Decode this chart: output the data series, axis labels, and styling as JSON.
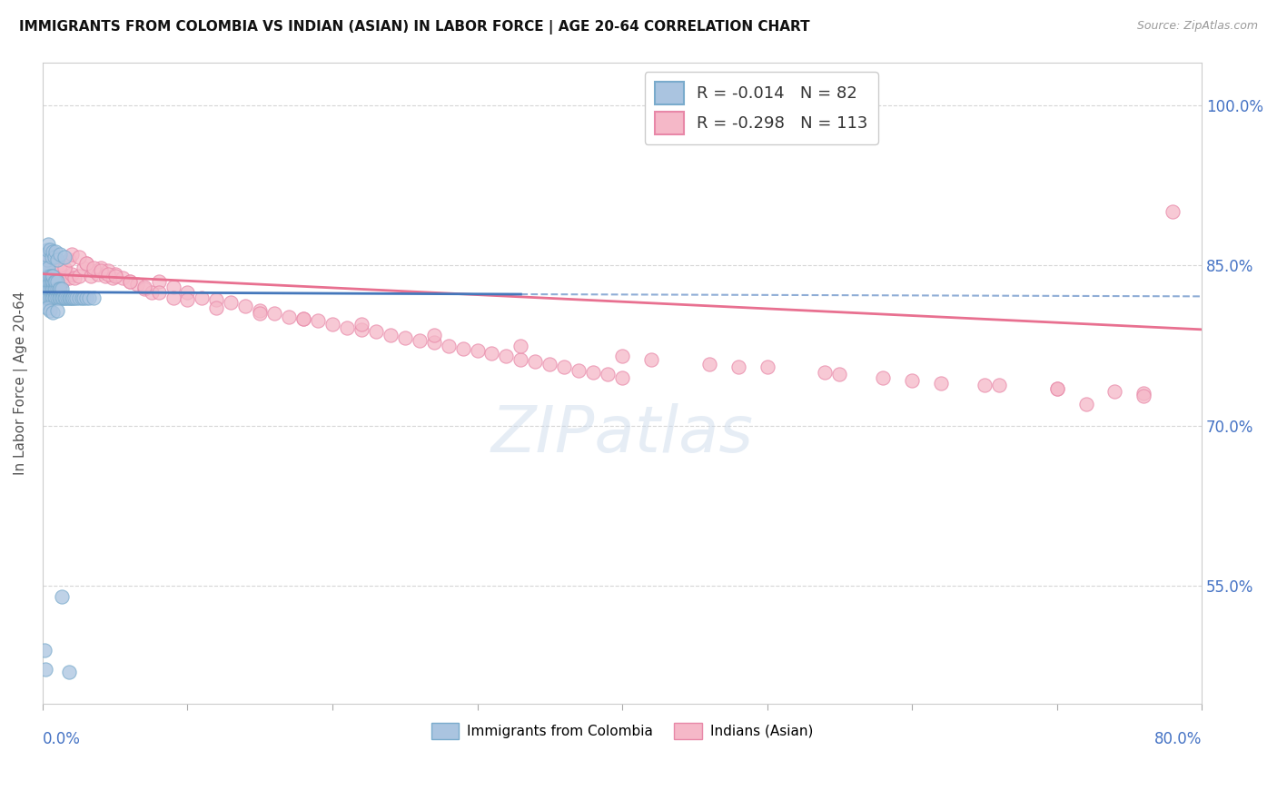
{
  "title": "IMMIGRANTS FROM COLOMBIA VS INDIAN (ASIAN) IN LABOR FORCE | AGE 20-64 CORRELATION CHART",
  "source": "Source: ZipAtlas.com",
  "ylabel": "In Labor Force | Age 20-64",
  "ylabel_ticks": [
    "55.0%",
    "70.0%",
    "85.0%",
    "100.0%"
  ],
  "ylabel_tick_vals": [
    0.55,
    0.7,
    0.85,
    1.0
  ],
  "xlim": [
    0.0,
    0.8
  ],
  "ylim": [
    0.44,
    1.04
  ],
  "colombia_color": "#aac4e0",
  "colombia_edge": "#7aabcc",
  "india_color": "#f5b8c8",
  "india_edge": "#e888a8",
  "colombia_R": -0.014,
  "colombia_N": 82,
  "india_R": -0.298,
  "india_N": 113,
  "watermark_text": "ZIPatlas",
  "legend_label_colombia": "Immigrants from Colombia",
  "legend_label_india": "Indians (Asian)",
  "colombia_trend_color": "#4477bb",
  "india_trend_color": "#e87090",
  "colombia_x": [
    0.001,
    0.001,
    0.001,
    0.002,
    0.002,
    0.002,
    0.002,
    0.002,
    0.002,
    0.003,
    0.003,
    0.003,
    0.003,
    0.003,
    0.003,
    0.004,
    0.004,
    0.004,
    0.004,
    0.004,
    0.005,
    0.005,
    0.005,
    0.005,
    0.006,
    0.006,
    0.006,
    0.006,
    0.007,
    0.007,
    0.007,
    0.007,
    0.008,
    0.008,
    0.008,
    0.009,
    0.009,
    0.009,
    0.01,
    0.01,
    0.01,
    0.011,
    0.011,
    0.012,
    0.012,
    0.013,
    0.013,
    0.014,
    0.015,
    0.016,
    0.017,
    0.018,
    0.019,
    0.02,
    0.021,
    0.022,
    0.023,
    0.025,
    0.027,
    0.028,
    0.03,
    0.032,
    0.035,
    0.002,
    0.003,
    0.004,
    0.005,
    0.006,
    0.007,
    0.008,
    0.009,
    0.01,
    0.012,
    0.015,
    0.003,
    0.005,
    0.007,
    0.01,
    0.001,
    0.002,
    0.013,
    0.018
  ],
  "colombia_y": [
    0.82,
    0.828,
    0.835,
    0.82,
    0.828,
    0.835,
    0.84,
    0.848,
    0.815,
    0.82,
    0.828,
    0.835,
    0.84,
    0.848,
    0.855,
    0.82,
    0.828,
    0.835,
    0.84,
    0.848,
    0.82,
    0.828,
    0.835,
    0.84,
    0.82,
    0.828,
    0.835,
    0.84,
    0.82,
    0.828,
    0.835,
    0.84,
    0.82,
    0.828,
    0.835,
    0.82,
    0.828,
    0.835,
    0.82,
    0.828,
    0.835,
    0.82,
    0.828,
    0.82,
    0.828,
    0.82,
    0.828,
    0.82,
    0.82,
    0.82,
    0.82,
    0.82,
    0.82,
    0.82,
    0.82,
    0.82,
    0.82,
    0.82,
    0.82,
    0.82,
    0.82,
    0.82,
    0.82,
    0.86,
    0.865,
    0.87,
    0.865,
    0.858,
    0.863,
    0.858,
    0.863,
    0.855,
    0.86,
    0.858,
    0.81,
    0.808,
    0.806,
    0.808,
    0.49,
    0.472,
    0.54,
    0.47
  ],
  "india_x": [
    0.001,
    0.002,
    0.003,
    0.004,
    0.005,
    0.006,
    0.007,
    0.008,
    0.009,
    0.01,
    0.011,
    0.012,
    0.013,
    0.014,
    0.015,
    0.016,
    0.018,
    0.02,
    0.022,
    0.025,
    0.028,
    0.03,
    0.033,
    0.035,
    0.038,
    0.04,
    0.043,
    0.045,
    0.048,
    0.05,
    0.055,
    0.06,
    0.065,
    0.07,
    0.075,
    0.08,
    0.09,
    0.1,
    0.11,
    0.12,
    0.13,
    0.14,
    0.15,
    0.16,
    0.17,
    0.18,
    0.19,
    0.2,
    0.21,
    0.22,
    0.23,
    0.24,
    0.25,
    0.26,
    0.27,
    0.28,
    0.29,
    0.3,
    0.31,
    0.32,
    0.33,
    0.34,
    0.35,
    0.36,
    0.37,
    0.38,
    0.39,
    0.4,
    0.002,
    0.004,
    0.006,
    0.008,
    0.01,
    0.012,
    0.015,
    0.018,
    0.02,
    0.025,
    0.03,
    0.035,
    0.04,
    0.045,
    0.05,
    0.06,
    0.07,
    0.08,
    0.09,
    0.1,
    0.12,
    0.15,
    0.18,
    0.22,
    0.27,
    0.33,
    0.4,
    0.48,
    0.55,
    0.6,
    0.65,
    0.7,
    0.42,
    0.46,
    0.5,
    0.54,
    0.58,
    0.62,
    0.66,
    0.7,
    0.74,
    0.76,
    0.78,
    0.76,
    0.72
  ],
  "india_y": [
    0.83,
    0.835,
    0.84,
    0.845,
    0.838,
    0.832,
    0.838,
    0.842,
    0.848,
    0.835,
    0.84,
    0.845,
    0.84,
    0.835,
    0.84,
    0.845,
    0.838,
    0.842,
    0.838,
    0.84,
    0.848,
    0.852,
    0.84,
    0.845,
    0.842,
    0.848,
    0.84,
    0.845,
    0.838,
    0.842,
    0.838,
    0.835,
    0.832,
    0.828,
    0.825,
    0.835,
    0.83,
    0.825,
    0.82,
    0.818,
    0.815,
    0.812,
    0.808,
    0.805,
    0.802,
    0.8,
    0.798,
    0.795,
    0.792,
    0.79,
    0.788,
    0.785,
    0.782,
    0.78,
    0.778,
    0.775,
    0.772,
    0.77,
    0.768,
    0.765,
    0.762,
    0.76,
    0.758,
    0.755,
    0.752,
    0.75,
    0.748,
    0.745,
    0.855,
    0.86,
    0.858,
    0.855,
    0.852,
    0.85,
    0.848,
    0.855,
    0.86,
    0.858,
    0.852,
    0.848,
    0.845,
    0.842,
    0.84,
    0.835,
    0.83,
    0.825,
    0.82,
    0.818,
    0.81,
    0.805,
    0.8,
    0.795,
    0.785,
    0.775,
    0.765,
    0.755,
    0.748,
    0.742,
    0.738,
    0.735,
    0.762,
    0.758,
    0.755,
    0.75,
    0.745,
    0.74,
    0.738,
    0.735,
    0.732,
    0.73,
    0.9,
    0.728,
    0.72
  ]
}
